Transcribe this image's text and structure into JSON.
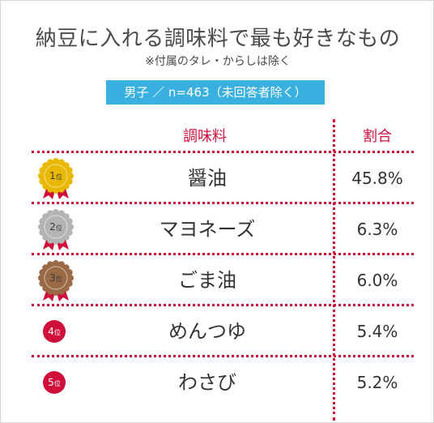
{
  "header": {
    "title": "納豆に入れる調味料で最も好きなもの",
    "subtitle": "※付属のタレ・からしは除く",
    "badge": "男子 ／ n=463（未回答者除く）"
  },
  "columns": {
    "name": "調味料",
    "pct": "割合"
  },
  "colors": {
    "accent": "#d0103a",
    "badge": "#3ab0e0",
    "gold": "#e8b900",
    "silver": "#b4b4b4",
    "bronze": "#9a6a46"
  },
  "chart_data": {
    "type": "table",
    "title": "納豆に入れる調味料で最も好きなもの",
    "subtitle": "※付属のタレ・からしは除く",
    "columns": [
      "調味料",
      "割合"
    ],
    "rows": [
      {
        "rank": "1",
        "rank_suffix": "位",
        "medal": "gold",
        "name": "醤油",
        "pct": "45.8%",
        "value": 45.8
      },
      {
        "rank": "2",
        "rank_suffix": "位",
        "medal": "silver",
        "name": "マヨネーズ",
        "pct": "6.3%",
        "value": 6.3
      },
      {
        "rank": "3",
        "rank_suffix": "位",
        "medal": "bronze",
        "name": "ごま油",
        "pct": "6.0%",
        "value": 6.0
      },
      {
        "rank": "4",
        "rank_suffix": "位",
        "medal": "none",
        "name": "めんつゆ",
        "pct": "5.4%",
        "value": 5.4
      },
      {
        "rank": "5",
        "rank_suffix": "位",
        "medal": "none",
        "name": "わさび",
        "pct": "5.2%",
        "value": 5.2
      }
    ]
  }
}
